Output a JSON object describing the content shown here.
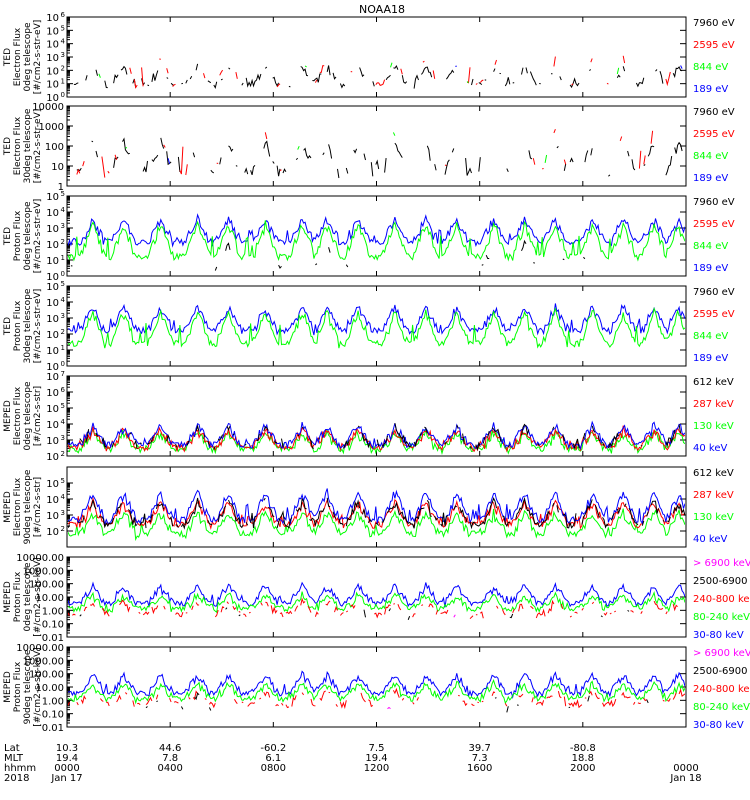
{
  "title": "NOAA18",
  "colors": {
    "blue": "#0000ff",
    "red": "#ff0000",
    "green": "#00ff00",
    "black": "#000000",
    "magenta": "#ff00ff"
  },
  "chart_data": [
    {
      "type": "line",
      "ylabel": [
        "TED",
        "Electron Flux",
        "0deg telescope",
        "[#/cm2-s-str-eV]"
      ],
      "yscale": "log",
      "ylim": [
        1,
        1000000
      ],
      "yticks": [
        {
          "v": 1,
          "label": "10",
          "exp": "0"
        },
        {
          "v": 10,
          "label": "10",
          "exp": "1"
        },
        {
          "v": 100,
          "label": "10",
          "exp": "2"
        },
        {
          "v": 1000,
          "label": "10",
          "exp": "3"
        },
        {
          "v": 10000,
          "label": "10",
          "exp": "4"
        },
        {
          "v": 100000,
          "label": "10",
          "exp": "5"
        },
        {
          "v": 1000000,
          "label": "10",
          "exp": "6"
        }
      ],
      "legend": [
        {
          "label": "7960 eV",
          "color": "black"
        },
        {
          "label": "2595 eV",
          "color": "red"
        },
        {
          "label": "844 eV",
          "color": "green"
        },
        {
          "label": "189 eV",
          "color": "blue"
        }
      ],
      "series": [
        {
          "color": "black",
          "baseline": 5,
          "level": 15,
          "fill": 0.55
        },
        {
          "color": "red",
          "baseline": 5,
          "level": 80,
          "fill": 0.3
        },
        {
          "color": "green",
          "baseline": 5,
          "level": 60,
          "fill": 0.1
        },
        {
          "color": "blue",
          "baseline": 5,
          "level": 40,
          "fill": 0.08
        }
      ]
    },
    {
      "type": "line",
      "ylabel": [
        "TED",
        "Electron Flux",
        "30deg telescope",
        "[#/cm2-s-str-eV]"
      ],
      "yscale": "log",
      "ylim": [
        1,
        10000
      ],
      "yticks": [
        {
          "v": 1,
          "label": "1",
          "exp": ""
        },
        {
          "v": 10,
          "label": "10",
          "exp": ""
        },
        {
          "v": 100,
          "label": "100",
          "exp": ""
        },
        {
          "v": 1000,
          "label": "1000",
          "exp": ""
        },
        {
          "v": 10000,
          "label": "10000",
          "exp": ""
        }
      ],
      "legend": [
        {
          "label": "7960 eV",
          "color": "black"
        },
        {
          "label": "2595 eV",
          "color": "red"
        },
        {
          "label": "844 eV",
          "color": "green"
        },
        {
          "label": "189 eV",
          "color": "blue"
        }
      ],
      "series": [
        {
          "color": "black",
          "baseline": 3,
          "level": 12,
          "fill": 0.5
        },
        {
          "color": "red",
          "baseline": 3,
          "level": 60,
          "fill": 0.25
        },
        {
          "color": "green",
          "baseline": 3,
          "level": 40,
          "fill": 0.1
        },
        {
          "color": "blue",
          "baseline": 3,
          "level": 30,
          "fill": 0.08
        }
      ]
    },
    {
      "type": "line",
      "ylabel": [
        "TED",
        "Proton Flux",
        "0deg telescope",
        "[#/cm2-s-str-eV]"
      ],
      "yscale": "log",
      "ylim": [
        1,
        100000
      ],
      "yticks": [
        {
          "v": 1,
          "label": "10",
          "exp": "0"
        },
        {
          "v": 10,
          "label": "10",
          "exp": "1"
        },
        {
          "v": 100,
          "label": "10",
          "exp": "2"
        },
        {
          "v": 1000,
          "label": "10",
          "exp": "3"
        },
        {
          "v": 10000,
          "label": "10",
          "exp": "4"
        },
        {
          "v": 100000,
          "label": "10",
          "exp": "5"
        }
      ],
      "legend": [
        {
          "label": "7960 eV",
          "color": "black"
        },
        {
          "label": "2595 eV",
          "color": "red"
        },
        {
          "label": "844 eV",
          "color": "green"
        },
        {
          "label": "189 eV",
          "color": "blue"
        }
      ],
      "series": [
        {
          "color": "black",
          "baseline": 2,
          "level": 8,
          "fill": 0.2
        },
        {
          "color": "blue",
          "baseline": 80,
          "level": 300,
          "fill": 1
        },
        {
          "color": "green",
          "baseline": 10,
          "level": 150,
          "fill": 1
        }
      ]
    },
    {
      "type": "line",
      "ylabel": [
        "TED",
        "Proton Flux",
        "30deg telescope",
        "[#/cm2-s-str-eV]"
      ],
      "yscale": "log",
      "ylim": [
        1,
        100000
      ],
      "yticks": [
        {
          "v": 1,
          "label": "10",
          "exp": "0"
        },
        {
          "v": 10,
          "label": "10",
          "exp": "1"
        },
        {
          "v": 100,
          "label": "10",
          "exp": "2"
        },
        {
          "v": 1000,
          "label": "10",
          "exp": "3"
        },
        {
          "v": 10000,
          "label": "10",
          "exp": "4"
        },
        {
          "v": 100000,
          "label": "10",
          "exp": "5"
        }
      ],
      "legend": [
        {
          "label": "7960 eV",
          "color": "black"
        },
        {
          "label": "2595 eV",
          "color": "red"
        },
        {
          "label": "844 eV",
          "color": "green"
        },
        {
          "label": "189 eV",
          "color": "blue"
        }
      ],
      "series": [
        {
          "color": "blue",
          "baseline": 100,
          "level": 400,
          "fill": 1
        },
        {
          "color": "green",
          "baseline": 15,
          "level": 200,
          "fill": 1
        }
      ]
    },
    {
      "type": "line",
      "ylabel": [
        "MEPED",
        "Electron Flux",
        "0deg telescope",
        "[#/cm2-s-str]"
      ],
      "yscale": "log",
      "ylim": [
        100,
        10000000
      ],
      "yticks": [
        {
          "v": 100,
          "label": "10",
          "exp": "2"
        },
        {
          "v": 1000,
          "label": "10",
          "exp": "3"
        },
        {
          "v": 10000,
          "label": "10",
          "exp": "4"
        },
        {
          "v": 100000,
          "label": "10",
          "exp": "5"
        },
        {
          "v": 1000000,
          "label": "10",
          "exp": "6"
        },
        {
          "v": 10000000,
          "label": "10",
          "exp": "7"
        }
      ],
      "legend": [
        {
          "label": "612 keV",
          "color": "black"
        },
        {
          "label": "287 keV",
          "color": "red"
        },
        {
          "label": "130 keV",
          "color": "green"
        },
        {
          "label": "40 keV",
          "color": "blue"
        }
      ],
      "series": [
        {
          "color": "green",
          "baseline": 150,
          "level": 250,
          "fill": 1
        },
        {
          "color": "red",
          "baseline": 200,
          "level": 400,
          "fill": 1
        },
        {
          "color": "blue",
          "baseline": 300,
          "level": 700,
          "fill": 1
        },
        {
          "color": "black",
          "baseline": 250,
          "level": 600,
          "fill": 0.6
        }
      ]
    },
    {
      "type": "line",
      "ylabel": [
        "MEPED",
        "Electron Flux",
        "90deg telescope",
        "[#/cm2-s-str]"
      ],
      "yscale": "log",
      "ylim": [
        10,
        1000000
      ],
      "yticks": [
        {
          "v": 100,
          "label": "10",
          "exp": "2"
        },
        {
          "v": 1000,
          "label": "10",
          "exp": "3"
        },
        {
          "v": 10000,
          "label": "10",
          "exp": "4"
        },
        {
          "v": 100000,
          "label": "10",
          "exp": "5"
        }
      ],
      "legend": [
        {
          "label": "612 keV",
          "color": "black"
        },
        {
          "label": "287 keV",
          "color": "red"
        },
        {
          "label": "130 keV",
          "color": "green"
        },
        {
          "label": "40 keV",
          "color": "blue"
        }
      ],
      "series": [
        {
          "color": "green",
          "baseline": 40,
          "level": 120,
          "fill": 1
        },
        {
          "color": "red",
          "baseline": 150,
          "level": 500,
          "fill": 1
        },
        {
          "color": "blue",
          "baseline": 300,
          "level": 2000,
          "fill": 1
        },
        {
          "color": "black",
          "baseline": 150,
          "level": 600,
          "fill": 0.8
        }
      ]
    },
    {
      "type": "line",
      "ylabel": [
        "MEPED",
        "Proton Flux",
        "0deg telescope",
        "[#/cm2-s-str-keV]"
      ],
      "yscale": "log",
      "ylim": [
        0.01,
        10000
      ],
      "yticks": [
        {
          "v": 0.01,
          "label": "0.01",
          "exp": ""
        },
        {
          "v": 0.1,
          "label": "0.10",
          "exp": ""
        },
        {
          "v": 1,
          "label": "1.00",
          "exp": ""
        },
        {
          "v": 10,
          "label": "10.00",
          "exp": ""
        },
        {
          "v": 100,
          "label": "100.00",
          "exp": ""
        },
        {
          "v": 1000,
          "label": "1000.00",
          "exp": ""
        },
        {
          "v": 10000,
          "label": "10000.00",
          "exp": ""
        }
      ],
      "legend": [
        {
          "label": "> 6900 keV",
          "color": "magenta"
        },
        {
          "label": "2500-6900",
          "color": "black"
        },
        {
          "label": "240-800 ke",
          "color": "red"
        },
        {
          "label": "80-240 keV",
          "color": "green"
        },
        {
          "label": "30-80 keV",
          "color": "blue"
        }
      ],
      "series": [
        {
          "color": "blue",
          "baseline": 2,
          "level": 6,
          "fill": 1
        },
        {
          "color": "green",
          "baseline": 0.8,
          "level": 1.2,
          "fill": 1
        },
        {
          "color": "red",
          "baseline": 0.3,
          "level": 0.35,
          "fill": 0.6
        },
        {
          "color": "black",
          "baseline": 0.15,
          "level": 0.2,
          "fill": 0.2
        },
        {
          "color": "magenta",
          "baseline": 0.05,
          "level": 0.06,
          "fill": 0.05
        }
      ]
    },
    {
      "type": "line",
      "ylabel": [
        "MEPED",
        "Proton Flux",
        "90deg telescope",
        "[#/cm2-s-str-keV]"
      ],
      "yscale": "log",
      "ylim": [
        0.01,
        10000
      ],
      "yticks": [
        {
          "v": 0.01,
          "label": "0.01",
          "exp": ""
        },
        {
          "v": 0.1,
          "label": "0.10",
          "exp": ""
        },
        {
          "v": 1,
          "label": "1.00",
          "exp": ""
        },
        {
          "v": 10,
          "label": "10.00",
          "exp": ""
        },
        {
          "v": 100,
          "label": "100.00",
          "exp": ""
        },
        {
          "v": 1000,
          "label": "1000.00",
          "exp": ""
        },
        {
          "v": 10000,
          "label": "10000.00",
          "exp": ""
        }
      ],
      "legend": [
        {
          "label": "> 6900 keV",
          "color": "magenta"
        },
        {
          "label": "2500-6900",
          "color": "black"
        },
        {
          "label": "240-800 ke",
          "color": "red"
        },
        {
          "label": "80-240 keV",
          "color": "green"
        },
        {
          "label": "30-80 keV",
          "color": "blue"
        }
      ],
      "series": [
        {
          "color": "blue",
          "baseline": 2,
          "level": 8,
          "fill": 1
        },
        {
          "color": "green",
          "baseline": 0.8,
          "level": 1.5,
          "fill": 1
        },
        {
          "color": "red",
          "baseline": 0.3,
          "level": 0.4,
          "fill": 0.6
        },
        {
          "color": "black",
          "baseline": 0.15,
          "level": 0.2,
          "fill": 0.2
        },
        {
          "color": "magenta",
          "baseline": 0.05,
          "level": 0.06,
          "fill": 0.05
        }
      ]
    }
  ],
  "xaxis": {
    "row_labels": [
      "Lat",
      "MLT",
      "hhmm",
      "2018"
    ],
    "ticks": [
      {
        "frac": 0.0,
        "lat": "10.3",
        "mlt": "19.4",
        "hhmm": "0000",
        "date": "Jan 17"
      },
      {
        "frac": 0.1667,
        "lat": "44.6",
        "mlt": "7.8",
        "hhmm": "0400",
        "date": ""
      },
      {
        "frac": 0.3333,
        "lat": "-60.2",
        "mlt": "6.1",
        "hhmm": "0800",
        "date": ""
      },
      {
        "frac": 0.5,
        "lat": "7.5",
        "mlt": "19.4",
        "hhmm": "1200",
        "date": ""
      },
      {
        "frac": 0.6667,
        "lat": "39.7",
        "mlt": "7.3",
        "hhmm": "1600",
        "date": ""
      },
      {
        "frac": 0.8333,
        "lat": "-80.8",
        "mlt": "18.8",
        "hhmm": "2000",
        "date": ""
      },
      {
        "frac": 1.0,
        "lat": "",
        "mlt": "",
        "hhmm": "0000",
        "date": "Jan 18"
      }
    ]
  }
}
